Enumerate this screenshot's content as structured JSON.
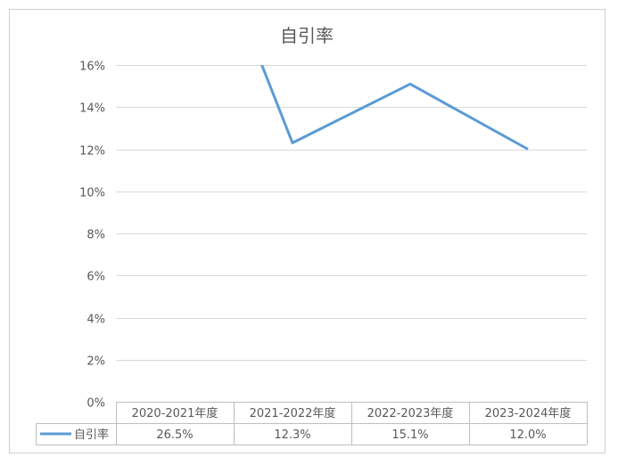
{
  "chart_data": {
    "type": "line",
    "title": "自引率",
    "categories": [
      "2020-2021年度",
      "2021-2022年度",
      "2022-2023年度",
      "2023-2024年度"
    ],
    "series": [
      {
        "name": "自引率",
        "values": [
          26.5,
          12.3,
          15.1,
          12.0
        ],
        "value_labels": [
          "26.5%",
          "12.3%",
          "15.1%",
          "12.0%"
        ],
        "color": "#5b9bd5"
      }
    ],
    "y_ticks": [
      "0%",
      "2%",
      "4%",
      "6%",
      "8%",
      "10%",
      "12%",
      "14%",
      "16%"
    ],
    "ylim": [
      0,
      16
    ],
    "grid": true,
    "legend": "data-table-left",
    "data_table": true,
    "colors": {
      "line": "#5b9bd5",
      "grid": "#d9d9d9",
      "text": "#595959",
      "border": "#bfbfbf"
    }
  }
}
